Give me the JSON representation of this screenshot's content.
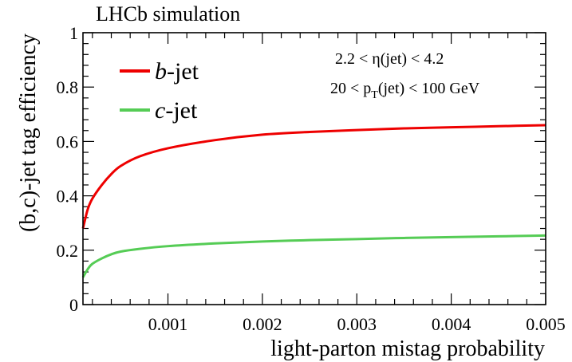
{
  "header": {
    "title": "LHCb simulation"
  },
  "annotations": {
    "eta_range": {
      "prefix": "2.2 < ",
      "symbol": "η",
      "suffix": "(jet) < 4.2"
    },
    "pt_range": {
      "prefix": "20 < p",
      "sub": "T",
      "suffix": "(jet) < 100 GeV"
    }
  },
  "chart_data": {
    "type": "line",
    "title": "LHCb simulation",
    "xlabel": "light-parton mistag probability",
    "ylabel": "(b,c)-jet tag efficiency",
    "xlim": [
      0.0001,
      0.005
    ],
    "ylim": [
      0,
      1
    ],
    "xticks": [
      0.001,
      0.002,
      0.003,
      0.004,
      0.005
    ],
    "xtick_labels": [
      "0.001",
      "0.002",
      "0.003",
      "0.004",
      "0.005"
    ],
    "yticks": [
      0,
      0.2,
      0.4,
      0.6,
      0.8,
      1
    ],
    "ytick_labels": [
      "0",
      "0.2",
      "0.4",
      "0.6",
      "0.8",
      "1"
    ],
    "grid": false,
    "legend_position": "top-left",
    "series": [
      {
        "name": "b-jet",
        "name_italic": "b",
        "name_rest": "-jet",
        "color": "#ee0000",
        "x": [
          0.0001,
          0.00015,
          0.0002,
          0.0003,
          0.0004,
          0.0005,
          0.0007,
          0.001,
          0.0015,
          0.002,
          0.0025,
          0.003,
          0.0035,
          0.004,
          0.0045,
          0.005
        ],
        "y": [
          0.28,
          0.35,
          0.39,
          0.44,
          0.48,
          0.51,
          0.545,
          0.575,
          0.605,
          0.625,
          0.635,
          0.642,
          0.648,
          0.652,
          0.656,
          0.66
        ]
      },
      {
        "name": "c-jet",
        "name_italic": "c",
        "name_rest": "-jet",
        "color": "#55cc55",
        "x": [
          0.0001,
          0.00015,
          0.0002,
          0.0003,
          0.0004,
          0.0005,
          0.0007,
          0.001,
          0.0015,
          0.002,
          0.0025,
          0.003,
          0.0035,
          0.004,
          0.0045,
          0.005
        ],
        "y": [
          0.1,
          0.13,
          0.15,
          0.17,
          0.185,
          0.195,
          0.205,
          0.215,
          0.225,
          0.232,
          0.237,
          0.241,
          0.245,
          0.248,
          0.251,
          0.254
        ]
      }
    ]
  }
}
